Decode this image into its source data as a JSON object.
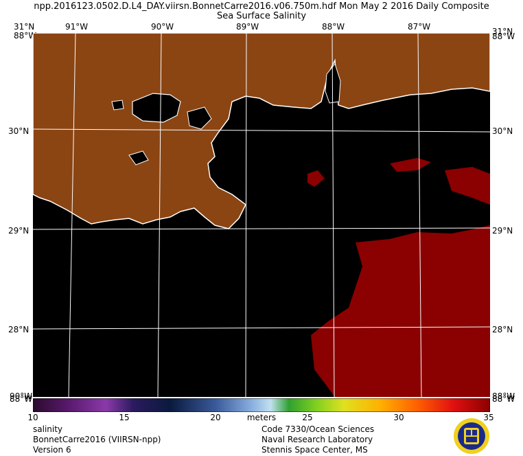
{
  "title": {
    "line1": "npp.2016123.0502.D.L4_DAY.viirsn.BonnetCarre2016.v06.750m.hdf    Mon May  2 2016 Daily Composite",
    "line2": "Sea Surface Salinity"
  },
  "map": {
    "lon_labels": [
      "91°W",
      "90°W",
      "89°W",
      "88°W",
      "87°W"
    ],
    "lat_labels": [
      "30°N",
      "29°N",
      "28°N"
    ],
    "corner_labels": {
      "top_left": "31°N",
      "top_left_overlap": "88°W",
      "top_right": "31°N",
      "top_right_overlap": "88°W",
      "bottom_left": "90°W",
      "bottom_left_overlap": "88°W",
      "bottom_right": "88°W",
      "bottom_right_overlap": "88°W"
    },
    "colors": {
      "land": "#8B4513",
      "water": "#000000",
      "coast": "#ffffff",
      "high_salinity": "#8b0000",
      "grid": "#ffffff"
    }
  },
  "colorbar": {
    "ticks": [
      "10",
      "15",
      "20",
      "25",
      "30",
      "35"
    ],
    "unit": "meters",
    "range": [
      10,
      35
    ]
  },
  "footer": {
    "left": [
      "salinity",
      "BonnetCarre2016 (VIIRSN-npp)",
      "Version 6"
    ],
    "right": [
      "Code 7330/Ocean Sciences",
      "Naval Research Laboratory",
      "Stennis Space Center, MS"
    ]
  }
}
